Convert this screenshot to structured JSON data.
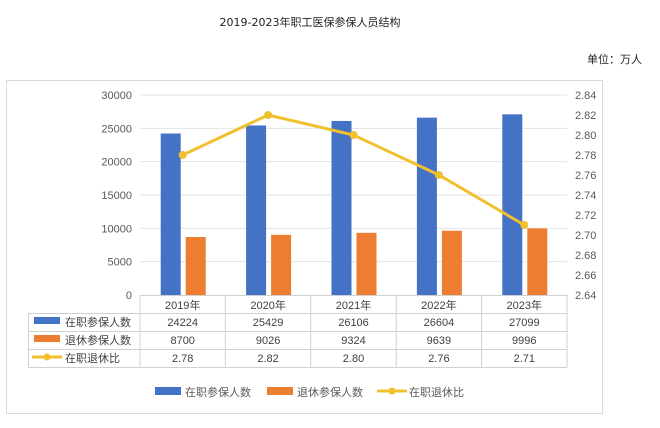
{
  "chart_data": {
    "type": "bar+line",
    "title": "2019-2023年职工医保参保人员结构",
    "unit_label": "单位：万人",
    "categories": [
      "2019年",
      "2020年",
      "2021年",
      "2022年",
      "2023年"
    ],
    "series": [
      {
        "name": "在职参保人数",
        "type": "bar",
        "axis": "left",
        "color": "#4472C4",
        "values": [
          24224,
          25429,
          26106,
          26604,
          27099
        ]
      },
      {
        "name": "退休参保人数",
        "type": "bar",
        "axis": "left",
        "color": "#ED7D31",
        "values": [
          8700,
          9026,
          9324,
          9639,
          9996
        ]
      },
      {
        "name": "在职退休比",
        "type": "line",
        "axis": "right",
        "color": "#F0C02E",
        "values": [
          2.78,
          2.82,
          2.8,
          2.76,
          2.71
        ],
        "labels": [
          "2.78",
          "2.82",
          "2.80",
          "2.76",
          "2.71"
        ]
      }
    ],
    "left_axis": {
      "ylim": [
        0,
        30000
      ],
      "ticks": [
        "0",
        "5000",
        "10000",
        "15000",
        "20000",
        "25000",
        "30000"
      ]
    },
    "right_axis": {
      "ylim": [
        2.64,
        2.84
      ],
      "ticks": [
        "2.64",
        "2.66",
        "2.68",
        "2.70",
        "2.72",
        "2.74",
        "2.76",
        "2.78",
        "2.80",
        "2.82",
        "2.84"
      ]
    },
    "grid": true,
    "data_table": true,
    "legend": "bottom"
  }
}
